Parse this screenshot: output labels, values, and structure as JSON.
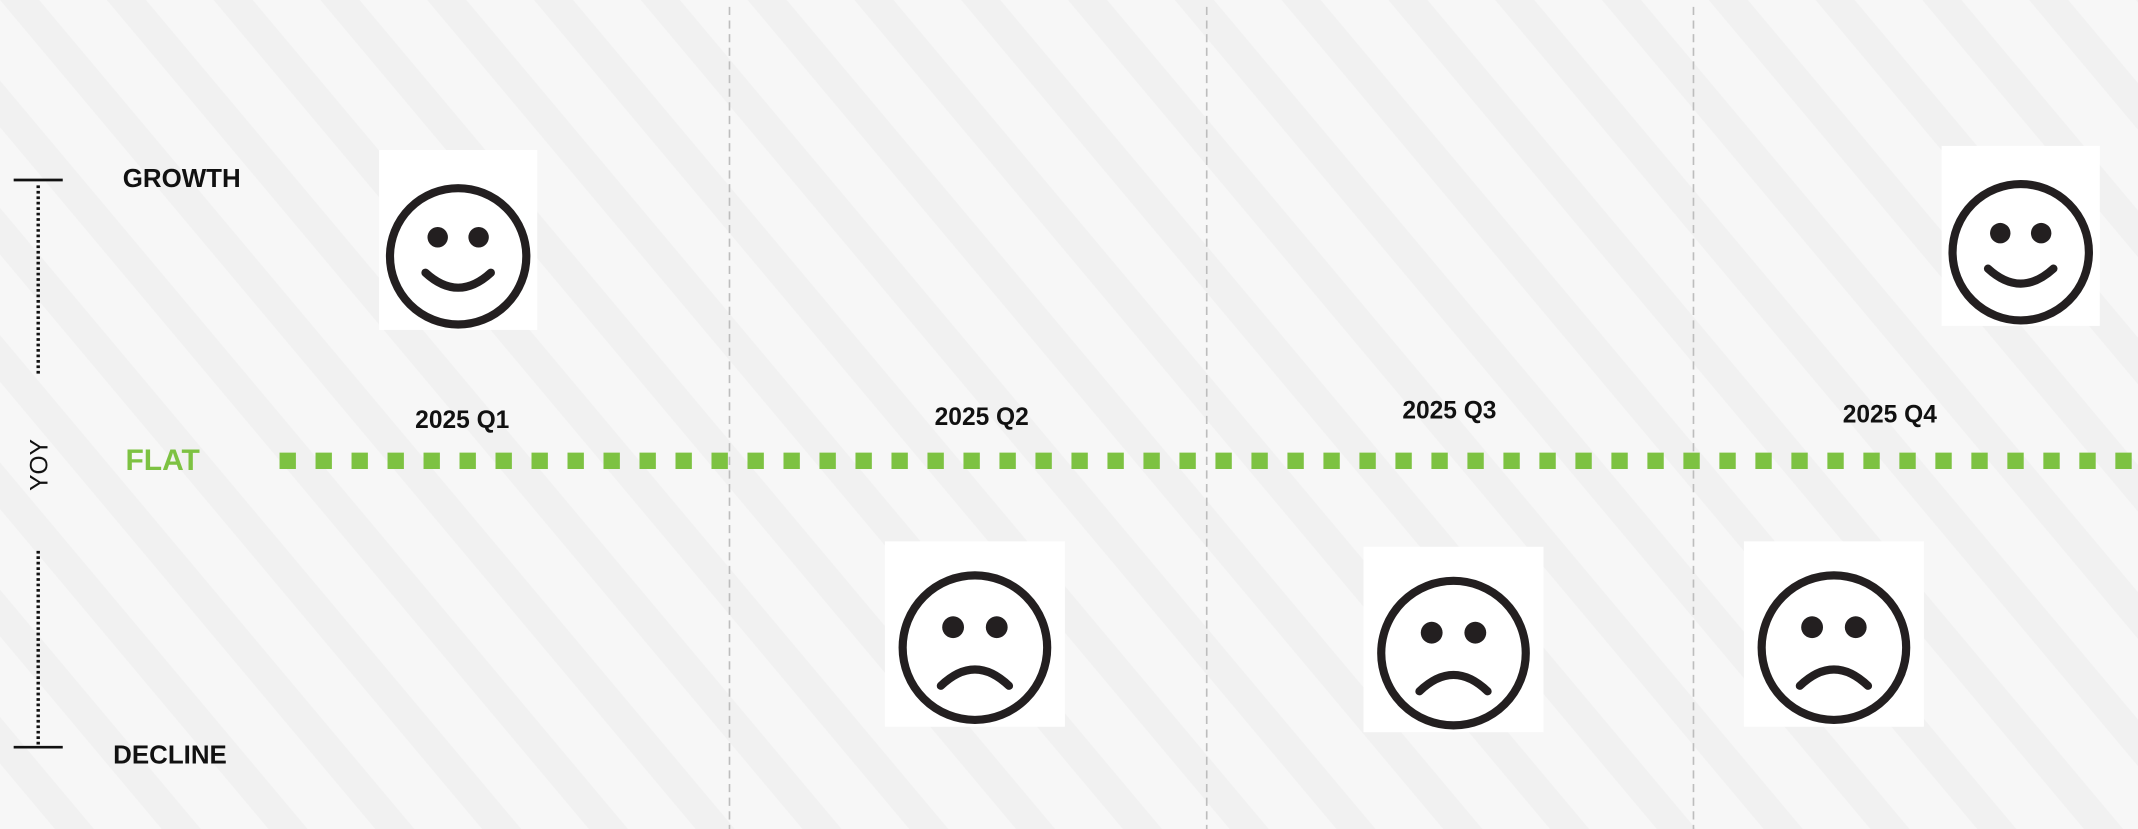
{
  "axis": {
    "title": "YOY",
    "top": "GROWTH",
    "middle": "FLAT",
    "bottom": "DECLINE"
  },
  "quarters": [
    "2025 Q1",
    "2025 Q2",
    "2025 Q3",
    "2025 Q4"
  ]
}
